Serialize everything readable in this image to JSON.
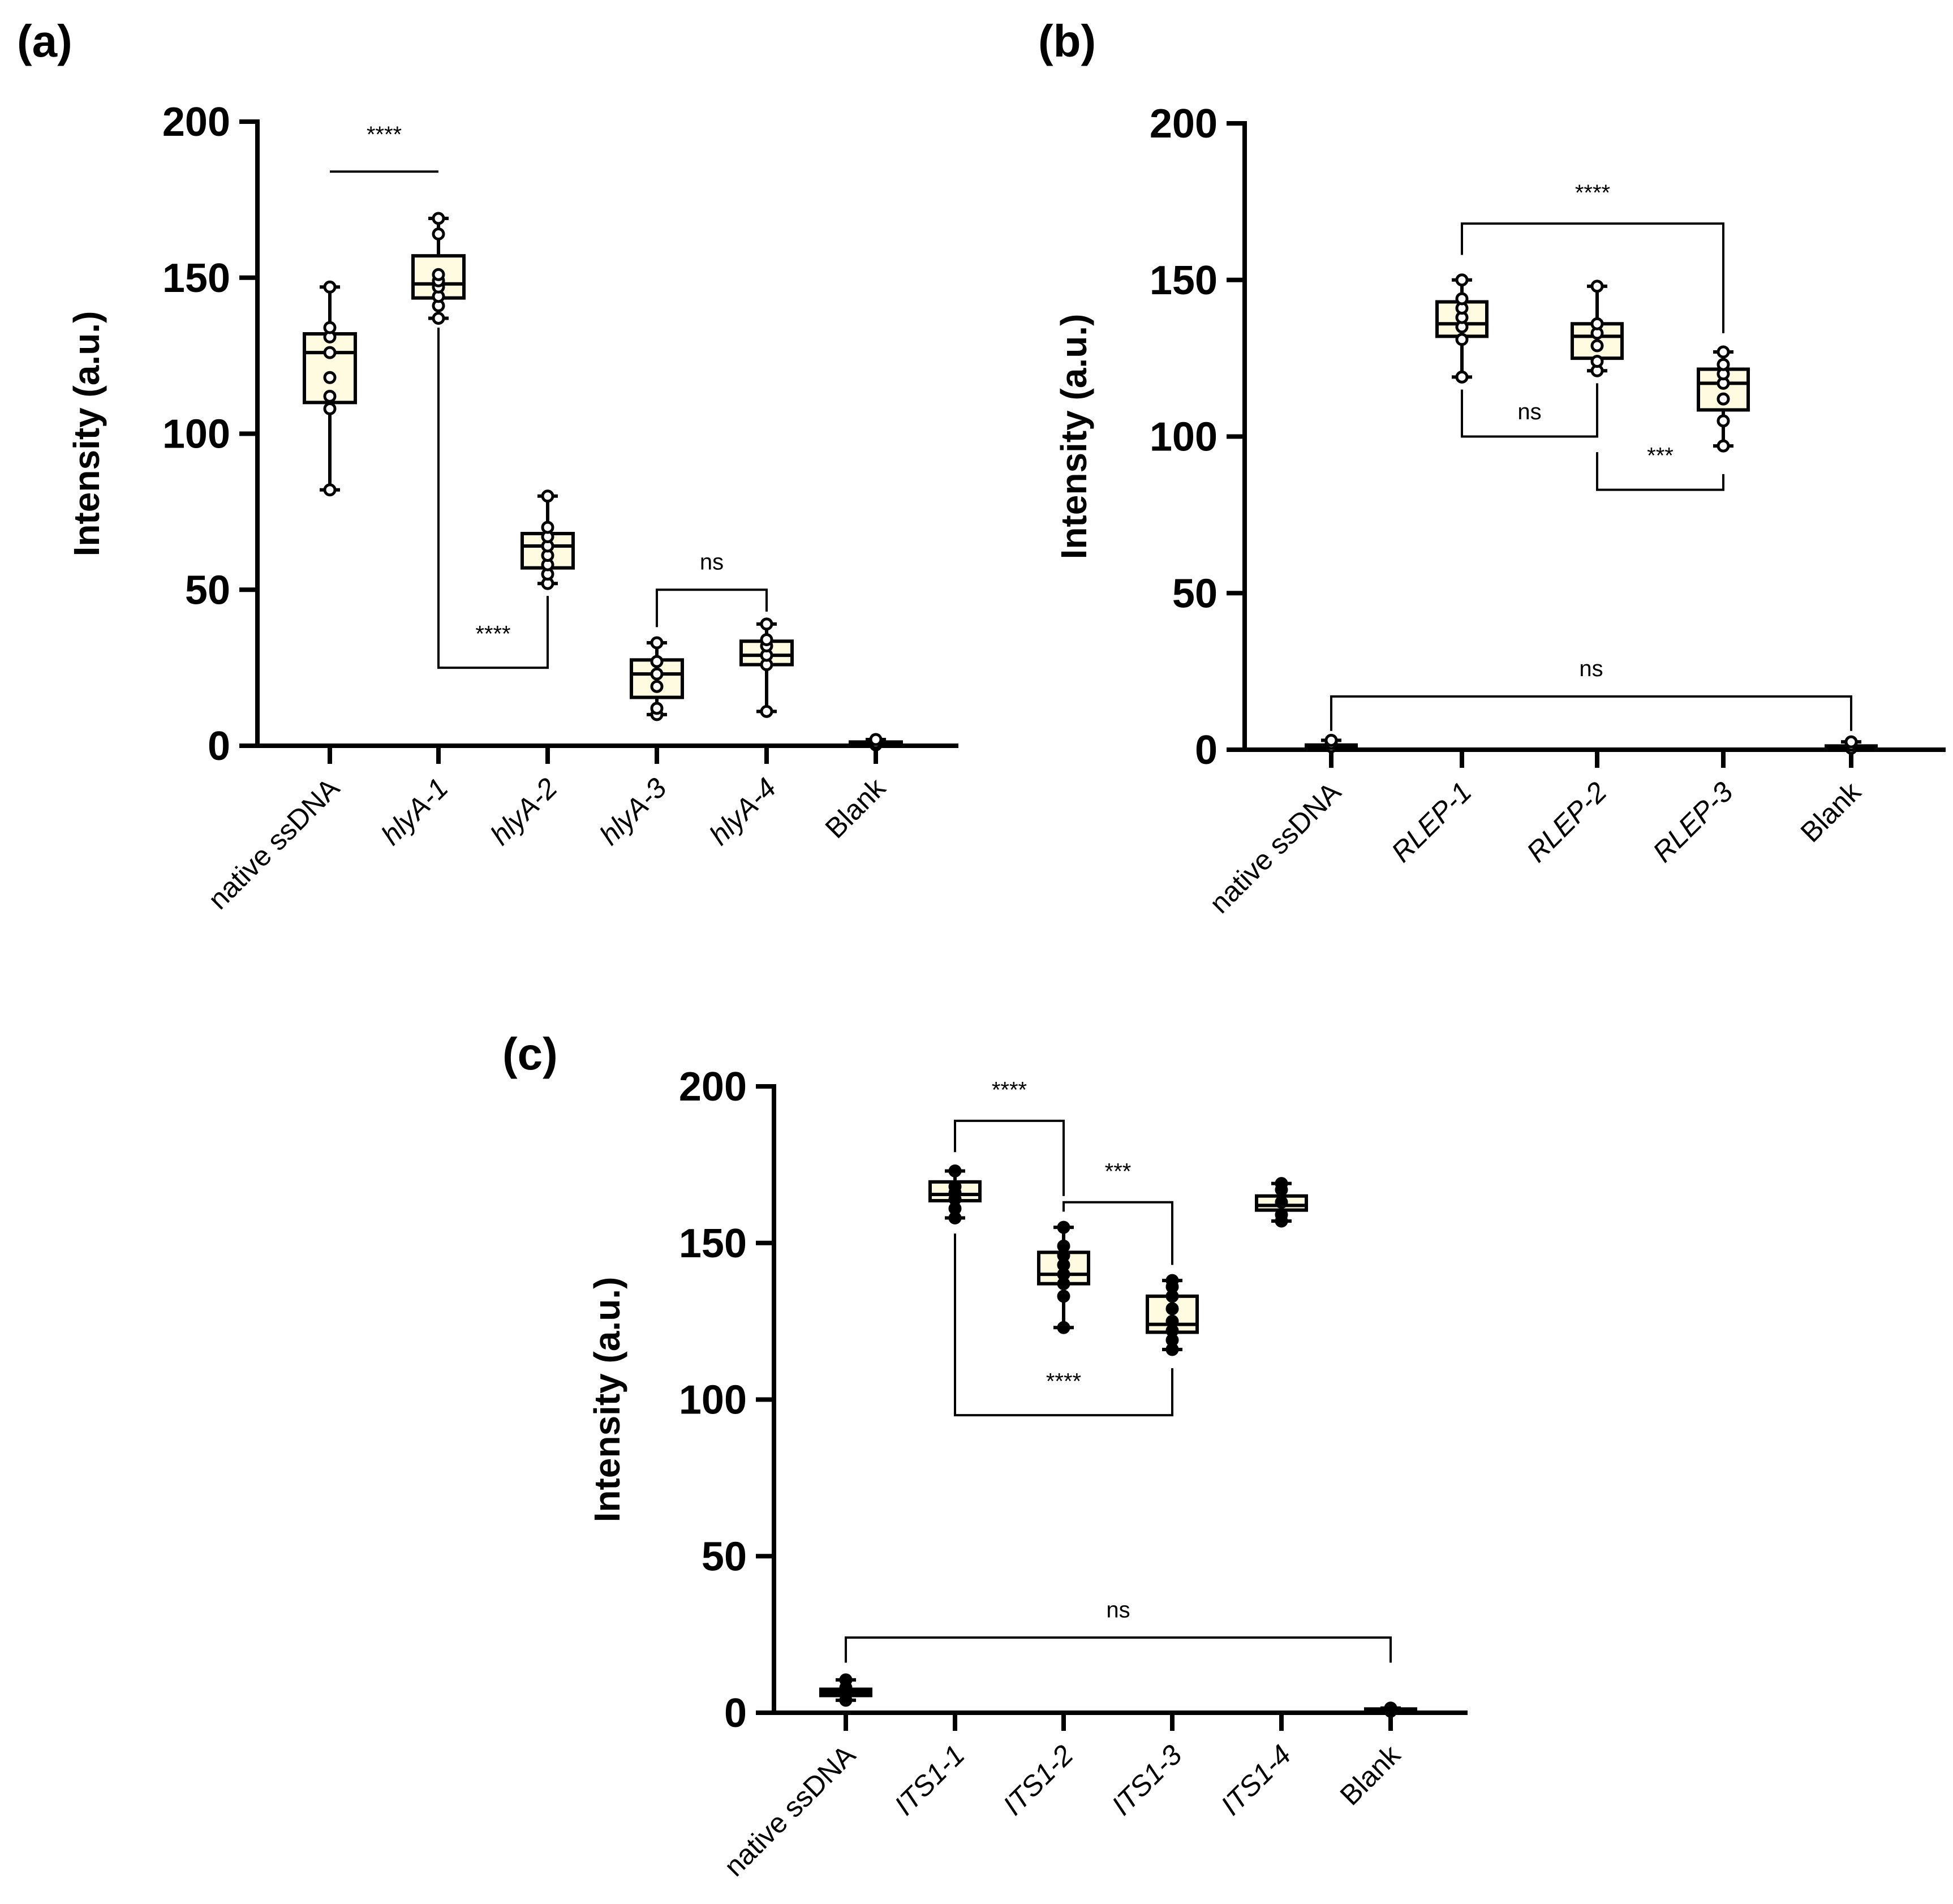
{
  "chart_data": [
    {
      "type": "box",
      "panel_label": "(a)",
      "ylabel": "Intensity (a.u.)",
      "ylim": [
        0,
        200
      ],
      "yticks": [
        "0",
        "50",
        "100",
        "150",
        "200"
      ],
      "point_fill": "#ffffff",
      "categories": [
        {
          "label": "native ssDNA",
          "italic": false,
          "min": 82,
          "q1": 110,
          "median": 126,
          "q3": 132,
          "max": 147,
          "points": [
            82,
            108,
            112,
            118,
            126,
            131,
            134,
            147
          ]
        },
        {
          "label": "hlyA-1",
          "italic": true,
          "min": 137,
          "q1": 143.5,
          "median": 148,
          "q3": 157,
          "max": 169,
          "points": [
            137,
            141,
            144,
            147,
            149,
            151,
            164,
            169
          ]
        },
        {
          "label": "hlyA-2",
          "italic": true,
          "min": 52,
          "q1": 57,
          "median": 64,
          "q3": 68,
          "max": 80,
          "points": [
            52,
            55,
            58,
            61,
            64,
            67,
            70,
            80
          ]
        },
        {
          "label": "hlyA-3",
          "italic": true,
          "min": 10,
          "q1": 15.5,
          "median": 23,
          "q3": 27.5,
          "max": 33,
          "points": [
            10,
            12,
            19,
            23,
            27,
            33
          ]
        },
        {
          "label": "hlyA-4",
          "italic": true,
          "min": 11,
          "q1": 26,
          "median": 29,
          "q3": 33.5,
          "max": 39,
          "points": [
            11,
            26,
            29,
            32,
            34,
            39
          ]
        },
        {
          "label": "Blank",
          "italic": false,
          "min": 0,
          "q1": 0.3,
          "median": 0.7,
          "q3": 1.2,
          "max": 2,
          "points": [
            0.3,
            1,
            2
          ]
        }
      ],
      "brackets": [
        {
          "from": 0,
          "to": 1,
          "y": 184,
          "left_end": 184,
          "right_end": 184,
          "label": "****",
          "label_pos": "above",
          "label_y": 196
        },
        {
          "from": 1,
          "to": 2,
          "y": 25,
          "left_end": 134,
          "right_end": 48,
          "label": "****",
          "label_pos": "above",
          "label_y": 36
        },
        {
          "from": 3,
          "to": 4,
          "y": 50,
          "left_end": 38,
          "right_end": 43,
          "label": "ns",
          "label_pos": "above",
          "label_y": 59
        }
      ]
    },
    {
      "type": "box",
      "panel_label": "(b)",
      "ylabel": "Intensity (a.u.)",
      "ylim": [
        0,
        200
      ],
      "yticks": [
        "0",
        "50",
        "100",
        "150",
        "200"
      ],
      "point_fill": "#ffffff",
      "categories": [
        {
          "label": "native ssDNA",
          "italic": false,
          "min": 0,
          "q1": 0.5,
          "median": 1,
          "q3": 1.5,
          "max": 3,
          "points": [
            1,
            2,
            3
          ]
        },
        {
          "label": "RLEP-1",
          "italic": true,
          "min": 119,
          "q1": 132,
          "median": 136,
          "q3": 143,
          "max": 150,
          "points": [
            119,
            131,
            135,
            138,
            141,
            144,
            150
          ]
        },
        {
          "label": "RLEP-2",
          "italic": true,
          "min": 121,
          "q1": 125,
          "median": 132,
          "q3": 136,
          "max": 148,
          "points": [
            121,
            124,
            129,
            133,
            136,
            148
          ]
        },
        {
          "label": "RLEP-3",
          "italic": true,
          "min": 97,
          "q1": 108.5,
          "median": 117,
          "q3": 121.5,
          "max": 127,
          "points": [
            97,
            105,
            112,
            117,
            120,
            123,
            127
          ]
        },
        {
          "label": "Blank",
          "italic": false,
          "min": 0,
          "q1": 0.3,
          "median": 0.7,
          "q3": 1.2,
          "max": 2.5,
          "points": [
            0.5,
            1.5,
            2.5
          ]
        }
      ],
      "brackets": [
        {
          "from": 1,
          "to": 3,
          "y": 168,
          "left_end": 158,
          "right_end": 133,
          "label": "****",
          "label_pos": "above",
          "label_y": 178
        },
        {
          "from": 1,
          "to": 2,
          "y": 100,
          "left_end": 115,
          "right_end": 117,
          "label": "ns",
          "label_pos": "above",
          "label_y": 108
        },
        {
          "from": 2,
          "to": 3,
          "y": 83,
          "left_end": 95,
          "right_end": 88,
          "label": "***",
          "label_pos": "above",
          "label_y": 94
        },
        {
          "from": 0,
          "to": 4,
          "y": 17,
          "left_end": 6,
          "right_end": 6,
          "label": "ns",
          "label_pos": "above",
          "label_y": 26
        }
      ]
    },
    {
      "type": "box",
      "panel_label": "(c)",
      "ylabel": "Intensity (a.u.)",
      "ylim": [
        0,
        200
      ],
      "yticks": [
        "0",
        "50",
        "100",
        "150",
        "200"
      ],
      "point_fill": "#000000",
      "categories": [
        {
          "label": "native ssDNA",
          "italic": false,
          "min": 4,
          "q1": 5.5,
          "median": 6.5,
          "q3": 7.5,
          "max": 10.5,
          "points": [
            4,
            6,
            8,
            10.5
          ]
        },
        {
          "label": "ITS1-1",
          "italic": true,
          "min": 158,
          "q1": 163.5,
          "median": 165.5,
          "q3": 169.5,
          "max": 173,
          "points": [
            158,
            161,
            164,
            166,
            168,
            173
          ]
        },
        {
          "label": "ITS1-2",
          "italic": true,
          "min": 123,
          "q1": 137,
          "median": 140,
          "q3": 147,
          "max": 155,
          "points": [
            123,
            133,
            137,
            140,
            143,
            146,
            149,
            155
          ]
        },
        {
          "label": "ITS1-3",
          "italic": true,
          "min": 116,
          "q1": 121.5,
          "median": 124,
          "q3": 133,
          "max": 138,
          "points": [
            116,
            119,
            122,
            125,
            129,
            133,
            136,
            138
          ]
        },
        {
          "label": "ITS1-4",
          "italic": true,
          "min": 157,
          "q1": 160.5,
          "median": 162,
          "q3": 165,
          "max": 169,
          "points": [
            157,
            159,
            163,
            167,
            169
          ]
        },
        {
          "label": "Blank",
          "italic": false,
          "min": 0,
          "q1": 0.3,
          "median": 0.7,
          "q3": 1.2,
          "max": 1.5,
          "points": [
            0.5,
            1.5
          ]
        }
      ],
      "brackets": [
        {
          "from": 1,
          "to": 2,
          "y": 189,
          "left_end": 179,
          "right_end": 165,
          "label": "****",
          "label_pos": "above",
          "label_y": 199
        },
        {
          "from": 2,
          "to": 3,
          "y": 163,
          "left_end": 160,
          "right_end": 143,
          "label": "***",
          "label_pos": "above",
          "label_y": 173
        },
        {
          "from": 1,
          "to": 3,
          "y": 95,
          "left_end": 153,
          "right_end": 110,
          "label": "****",
          "label_pos": "above",
          "label_y": 106
        },
        {
          "from": 0,
          "to": 5,
          "y": 24,
          "left_end": 16,
          "right_end": 16,
          "label": "ns",
          "label_pos": "above",
          "label_y": 33
        }
      ]
    }
  ]
}
